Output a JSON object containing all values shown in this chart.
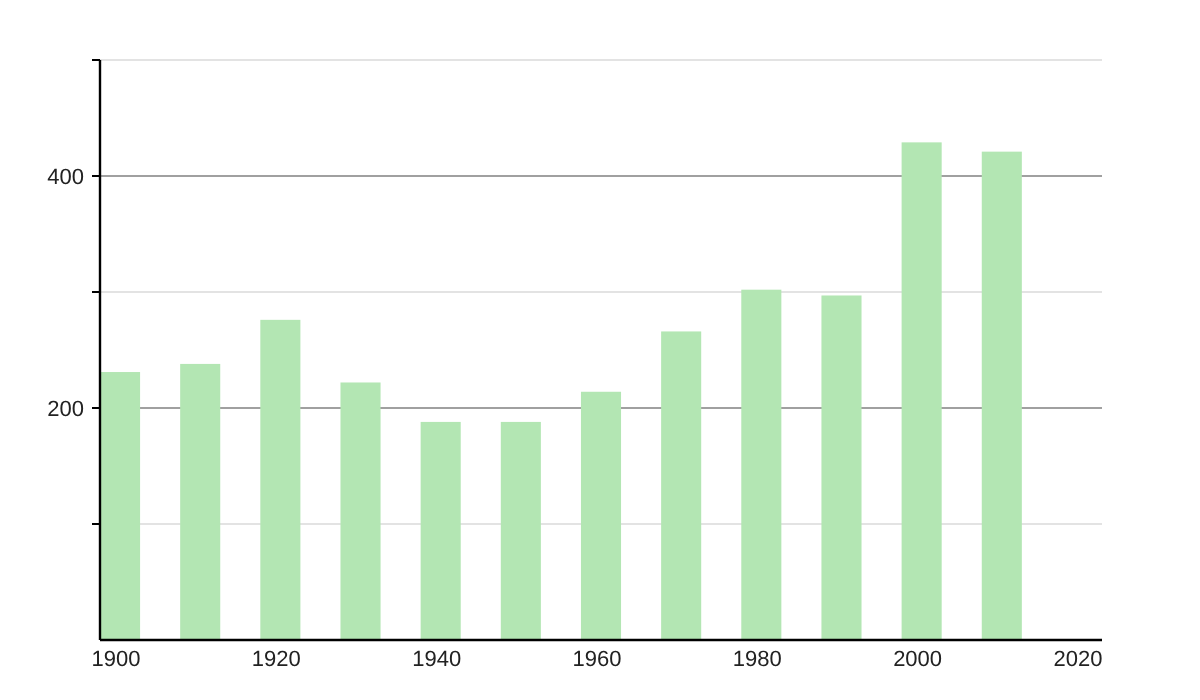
{
  "chart_data": {
    "type": "bar",
    "x": [
      1900,
      1910,
      1920,
      1930,
      1940,
      1950,
      1960,
      1970,
      1980,
      1990,
      2000,
      2010
    ],
    "values": [
      231,
      238,
      276,
      222,
      188,
      188,
      214,
      266,
      302,
      297,
      429,
      421
    ],
    "color": "#b3e6b3",
    "xlim": [
      1898,
      2023
    ],
    "xticks": [
      1900,
      1920,
      1940,
      1960,
      1980,
      2000,
      2020
    ],
    "ylim": [
      0,
      500
    ],
    "yticks": [
      {
        "value": 100,
        "label": null
      },
      200,
      {
        "value": 300,
        "label": null
      },
      400,
      {
        "value": 500,
        "label": null
      }
    ],
    "grid": "y"
  }
}
